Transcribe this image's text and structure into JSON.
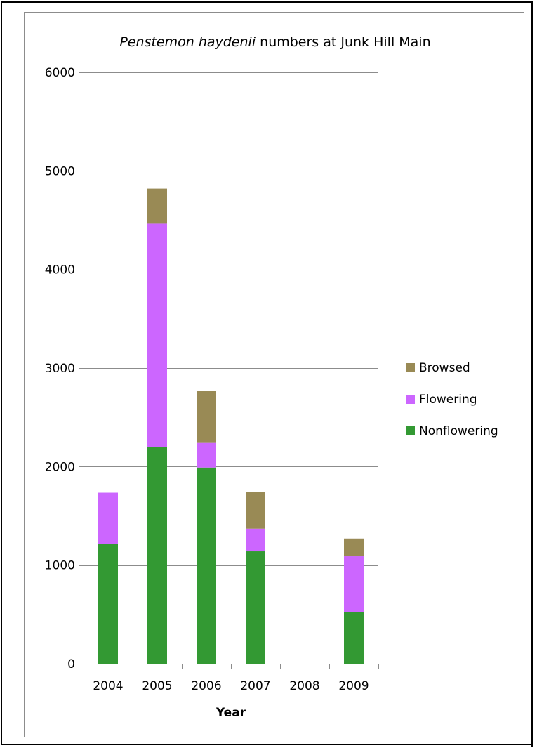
{
  "chart_data": {
    "type": "bar",
    "stacked": true,
    "title_italic": "Penstemon haydenii",
    "title_rest": " numbers at Junk Hill Main",
    "xlabel": "Year",
    "ylabel": "",
    "ylim": [
      0,
      6000
    ],
    "yticks": [
      0,
      1000,
      2000,
      3000,
      4000,
      5000,
      6000
    ],
    "categories": [
      "2004",
      "2005",
      "2006",
      "2007",
      "2008",
      "2009"
    ],
    "series": [
      {
        "name": "Nonflowering",
        "color": "#339933",
        "values": [
          1215,
          2200,
          1990,
          1140,
          0,
          525
        ]
      },
      {
        "name": "Flowering",
        "color": "#cc66ff",
        "values": [
          520,
          2265,
          250,
          230,
          0,
          565
        ]
      },
      {
        "name": "Browsed",
        "color": "#998a55",
        "values": [
          0,
          355,
          525,
          370,
          0,
          180
        ]
      }
    ],
    "legend_position": "right",
    "legend_order": [
      "Browsed",
      "Flowering",
      "Nonflowering"
    ],
    "grid": true
  }
}
